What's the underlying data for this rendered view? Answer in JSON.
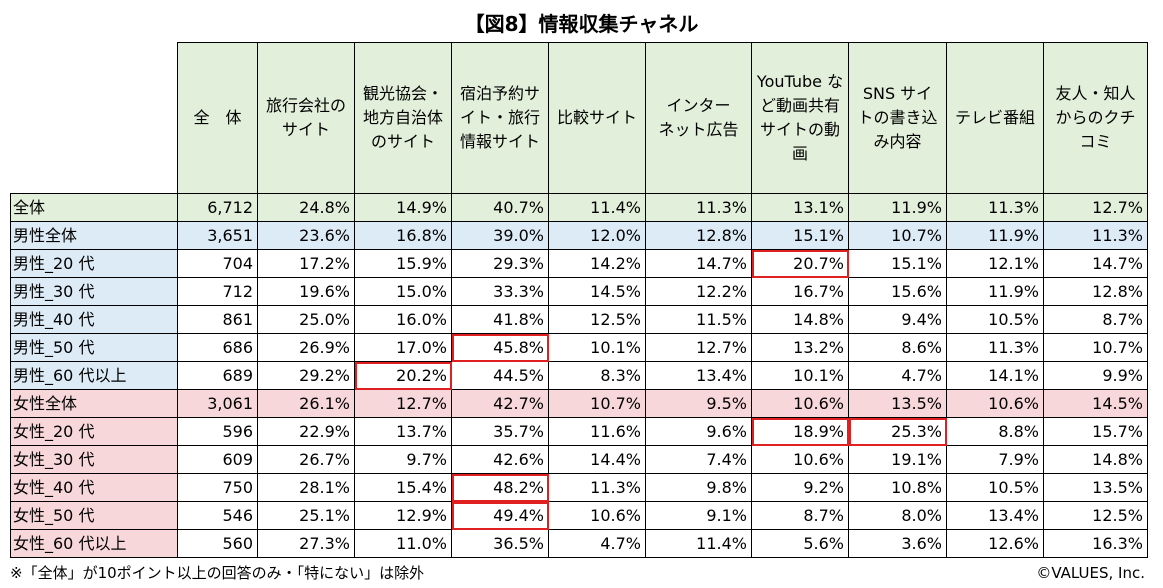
{
  "title": "【図8】情報収集チャネル",
  "columns": [
    [
      "全　体"
    ],
    [
      "旅行会社の",
      "サイト"
    ],
    [
      "観光協会・",
      "地方自治体",
      "のサイト"
    ],
    [
      "宿泊予約サ",
      "イト・旅行",
      "情報サイト"
    ],
    [
      "比較サイト"
    ],
    [
      "インター",
      "ネット広告"
    ],
    [
      "YouTube な",
      "ど動画共有",
      "サイトの動",
      "画"
    ],
    [
      "SNS サイ",
      "トの書き込",
      "み内容"
    ],
    [
      "テレビ番組"
    ],
    [
      "友人・知人",
      "からのクチ",
      "コミ"
    ]
  ],
  "rows": [
    {
      "label": "全体",
      "cells": [
        "6,712",
        "24.8%",
        "14.9%",
        "40.7%",
        "11.4%",
        "11.3%",
        "13.1%",
        "11.9%",
        "11.3%",
        "12.7%"
      ]
    },
    {
      "label": "男性全体",
      "cells": [
        "3,651",
        "23.6%",
        "16.8%",
        "39.0%",
        "12.0%",
        "12.8%",
        "15.1%",
        "10.7%",
        "11.9%",
        "11.3%"
      ]
    },
    {
      "label": "男性_20 代",
      "cells": [
        "704",
        "17.2%",
        "15.9%",
        "29.3%",
        "14.2%",
        "14.7%",
        "20.7%",
        "15.1%",
        "12.1%",
        "14.7%"
      ]
    },
    {
      "label": "男性_30 代",
      "cells": [
        "712",
        "19.6%",
        "15.0%",
        "33.3%",
        "14.5%",
        "12.2%",
        "16.7%",
        "15.6%",
        "11.9%",
        "12.8%"
      ]
    },
    {
      "label": "男性_40 代",
      "cells": [
        "861",
        "25.0%",
        "16.0%",
        "41.8%",
        "12.5%",
        "11.5%",
        "14.8%",
        "9.4%",
        "10.5%",
        "8.7%"
      ]
    },
    {
      "label": "男性_50 代",
      "cells": [
        "686",
        "26.9%",
        "17.0%",
        "45.8%",
        "10.1%",
        "12.7%",
        "13.2%",
        "8.6%",
        "11.3%",
        "10.7%"
      ]
    },
    {
      "label": "男性_60 代以上",
      "cells": [
        "689",
        "29.2%",
        "20.2%",
        "44.5%",
        "8.3%",
        "13.4%",
        "10.1%",
        "4.7%",
        "14.1%",
        "9.9%"
      ]
    },
    {
      "label": "女性全体",
      "cells": [
        "3,061",
        "26.1%",
        "12.7%",
        "42.7%",
        "10.7%",
        "9.5%",
        "10.6%",
        "13.5%",
        "10.6%",
        "14.5%"
      ]
    },
    {
      "label": "女性_20 代",
      "cells": [
        "596",
        "22.9%",
        "13.7%",
        "35.7%",
        "11.6%",
        "9.6%",
        "18.9%",
        "25.3%",
        "8.8%",
        "15.7%"
      ]
    },
    {
      "label": "女性_30 代",
      "cells": [
        "609",
        "26.7%",
        "9.7%",
        "42.6%",
        "14.4%",
        "7.4%",
        "10.6%",
        "19.1%",
        "7.9%",
        "14.8%"
      ]
    },
    {
      "label": "女性_40 代",
      "cells": [
        "750",
        "28.1%",
        "15.4%",
        "48.2%",
        "11.3%",
        "9.8%",
        "9.2%",
        "10.8%",
        "10.5%",
        "13.5%"
      ]
    },
    {
      "label": "女性_50 代",
      "cells": [
        "546",
        "25.1%",
        "12.9%",
        "49.4%",
        "10.6%",
        "9.1%",
        "8.7%",
        "8.0%",
        "13.4%",
        "12.5%"
      ]
    },
    {
      "label": "女性_60 代以上",
      "cells": [
        "560",
        "27.3%",
        "11.0%",
        "36.5%",
        "4.7%",
        "11.4%",
        "5.6%",
        "3.6%",
        "12.6%",
        "16.3%"
      ]
    }
  ],
  "highlights": [
    [
      2,
      6
    ],
    [
      5,
      3
    ],
    [
      6,
      2
    ],
    [
      8,
      6
    ],
    [
      8,
      7
    ],
    [
      10,
      3
    ],
    [
      11,
      3
    ]
  ],
  "colors": {
    "header_bg": "#e2efda",
    "all_bg": "#e2efda",
    "male_bg": "#ddebf7",
    "female_bg": "#f8d7da",
    "highlight_border": "#e02020"
  },
  "footnote": "※「全体」が10ポイント以上の回答のみ・「特にない」は除外",
  "copyright": "©VALUES, Inc."
}
